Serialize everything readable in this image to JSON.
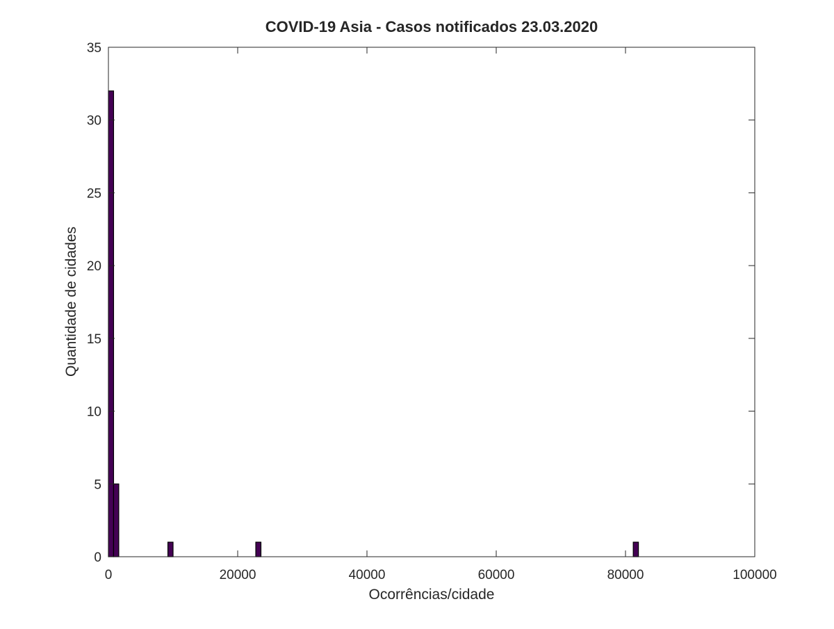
{
  "chart_data": {
    "type": "bar",
    "title": "COVID-19 Asia - Casos notificados 23.03.2020",
    "xlabel": "Ocorrências/cidade",
    "ylabel": "Quantidade de cidades",
    "xlim": [
      0,
      100000
    ],
    "ylim": [
      0,
      35
    ],
    "xticks": [
      0,
      20000,
      40000,
      60000,
      80000,
      100000
    ],
    "yticks": [
      0,
      5,
      10,
      15,
      20,
      25,
      30,
      35
    ],
    "grid": false,
    "bar_color": "#440154",
    "bar_edge_color": "#000000",
    "bins": [
      {
        "x_start": 0,
        "x_end": 800,
        "count": 32
      },
      {
        "x_start": 800,
        "x_end": 1600,
        "count": 5
      },
      {
        "x_start": 9200,
        "x_end": 10000,
        "count": 1
      },
      {
        "x_start": 22800,
        "x_end": 23600,
        "count": 1
      },
      {
        "x_start": 81200,
        "x_end": 82000,
        "count": 1
      }
    ]
  }
}
